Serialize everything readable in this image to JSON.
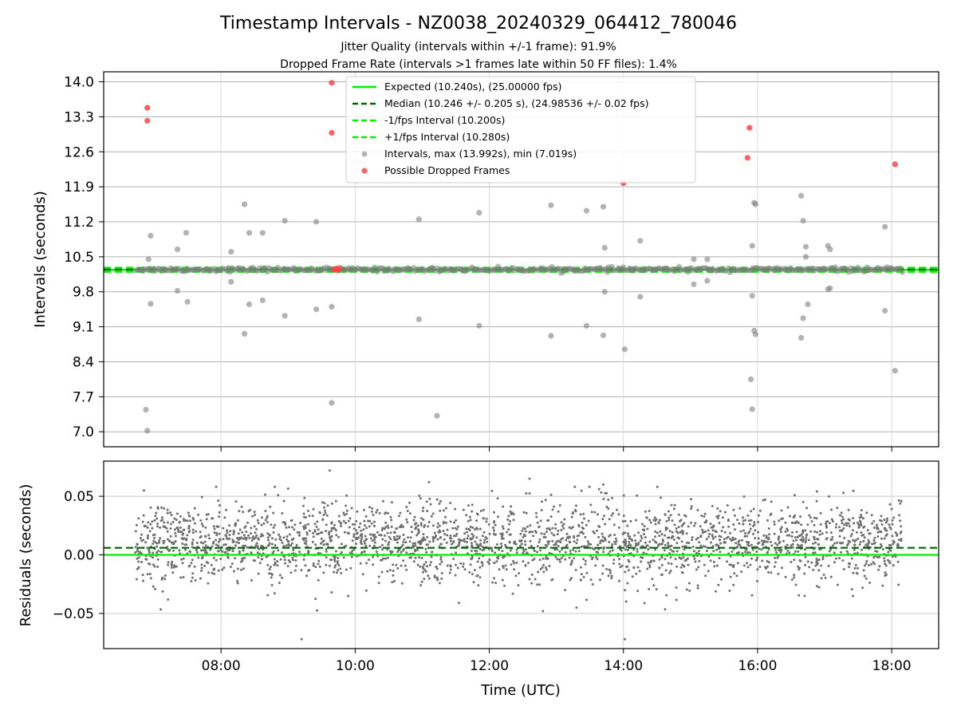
{
  "chart_data": [
    {
      "type": "scatter",
      "title": "Timestamp Intervals - NZ0038_20240329_064412_780046",
      "subtitle_lines": [
        "Jitter Quality (intervals within +/-1 frame): 91.9%",
        "Dropped Frame Rate (intervals >1 frames late within 50 FF files): 1.4%"
      ],
      "ylabel": "Intervals (seconds)",
      "xlabel": "",
      "xlim_hours": [
        6.25,
        18.7
      ],
      "ylim": [
        6.7,
        14.2
      ],
      "yticks": [
        7.0,
        7.7,
        8.4,
        9.1,
        9.8,
        10.5,
        11.2,
        11.9,
        12.6,
        13.3,
        14.0
      ],
      "ytick_labels": [
        "7.0",
        "7.7",
        "8.4",
        "9.1",
        "9.8",
        "10.5",
        "11.2",
        "11.9",
        "12.6",
        "13.3",
        "14.0"
      ],
      "grid": true,
      "legend_position": "top-center",
      "lines": [
        {
          "name": "Expected (10.240s), (25.00000 fps)",
          "y": 10.24,
          "style": "solid",
          "color": "#00ee00"
        },
        {
          "name": "Median (10.246 +/- 0.205 s), (24.98536 +/- 0.02 fps)",
          "y": 10.246,
          "style": "dashed",
          "color": "#006400"
        },
        {
          "name": "-1/fps Interval (10.200s)",
          "y": 10.2,
          "style": "dashed",
          "color": "#00ee00"
        },
        {
          "name": "+1/fps Interval (10.280s)",
          "y": 10.28,
          "style": "dashed",
          "color": "#00ee00"
        }
      ],
      "series": [
        {
          "name": "Intervals, max (13.992s), min (7.019s)",
          "color": "#808080",
          "band": {
            "x_start": 6.72,
            "x_end": 18.15,
            "center": 10.245,
            "spread": 0.02,
            "count": 420
          },
          "points": [
            [
              6.88,
              7.44
            ],
            [
              6.9,
              7.02
            ],
            [
              6.92,
              10.45
            ],
            [
              6.95,
              10.92
            ],
            [
              6.95,
              9.56
            ],
            [
              7.35,
              10.65
            ],
            [
              7.35,
              9.82
            ],
            [
              7.48,
              10.98
            ],
            [
              7.5,
              9.6
            ],
            [
              8.15,
              10.6
            ],
            [
              8.15,
              10.0
            ],
            [
              8.35,
              11.55
            ],
            [
              8.35,
              8.96
            ],
            [
              8.42,
              10.98
            ],
            [
              8.42,
              9.55
            ],
            [
              8.62,
              10.98
            ],
            [
              8.62,
              9.63
            ],
            [
              8.95,
              11.22
            ],
            [
              8.95,
              9.32
            ],
            [
              9.42,
              11.2
            ],
            [
              9.42,
              9.45
            ],
            [
              9.65,
              9.5
            ],
            [
              9.65,
              7.58
            ],
            [
              10.95,
              11.25
            ],
            [
              10.95,
              9.25
            ],
            [
              11.22,
              7.32
            ],
            [
              11.85,
              11.38
            ],
            [
              11.85,
              9.12
            ],
            [
              12.92,
              11.53
            ],
            [
              12.92,
              8.92
            ],
            [
              13.45,
              11.42
            ],
            [
              13.45,
              9.12
            ],
            [
              13.7,
              11.5
            ],
            [
              13.7,
              8.93
            ],
            [
              13.72,
              10.68
            ],
            [
              13.72,
              9.8
            ],
            [
              14.02,
              8.65
            ],
            [
              14.25,
              10.82
            ],
            [
              14.25,
              9.7
            ],
            [
              15.05,
              10.45
            ],
            [
              15.05,
              9.95
            ],
            [
              15.25,
              10.45
            ],
            [
              15.25,
              10.02
            ],
            [
              15.9,
              8.05
            ],
            [
              15.92,
              7.45
            ],
            [
              15.92,
              10.72
            ],
            [
              15.92,
              9.72
            ],
            [
              15.95,
              11.58
            ],
            [
              15.95,
              9.02
            ],
            [
              15.97,
              11.55
            ],
            [
              15.97,
              8.95
            ],
            [
              16.65,
              11.72
            ],
            [
              16.65,
              8.88
            ],
            [
              16.68,
              11.22
            ],
            [
              16.68,
              9.27
            ],
            [
              16.72,
              10.7
            ],
            [
              16.72,
              10.5
            ],
            [
              16.75,
              9.55
            ],
            [
              17.05,
              10.72
            ],
            [
              17.05,
              9.85
            ],
            [
              17.08,
              10.65
            ],
            [
              17.08,
              9.87
            ],
            [
              17.9,
              11.1
            ],
            [
              17.9,
              9.42
            ],
            [
              18.05,
              8.22
            ]
          ]
        },
        {
          "name": "Possible Dropped Frames",
          "color": "#ff4444",
          "points": [
            [
              6.9,
              13.48
            ],
            [
              6.9,
              13.22
            ],
            [
              9.65,
              13.98
            ],
            [
              9.65,
              12.98
            ],
            [
              14.0,
              11.97
            ],
            [
              15.85,
              12.48
            ],
            [
              15.88,
              13.08
            ],
            [
              18.05,
              12.35
            ],
            [
              9.68,
              10.25
            ],
            [
              9.7,
              10.24
            ],
            [
              9.72,
              10.26
            ],
            [
              9.74,
              10.24
            ],
            [
              9.76,
              10.25
            ]
          ]
        }
      ]
    },
    {
      "type": "scatter",
      "ylabel": "Residuals (seconds)",
      "xlabel": "Time (UTC)",
      "xlim_hours": [
        6.25,
        18.7
      ],
      "ylim": [
        -0.08,
        0.08
      ],
      "yticks": [
        -0.05,
        0.0,
        0.05
      ],
      "ytick_labels": [
        "−0.05",
        "0.00",
        "0.05"
      ],
      "xticks_hours": [
        8,
        10,
        12,
        14,
        16,
        18
      ],
      "xtick_labels": [
        "08:00",
        "10:00",
        "12:00",
        "14:00",
        "16:00",
        "18:00"
      ],
      "grid": true,
      "lines": [
        {
          "y": 0.0,
          "style": "solid",
          "color": "#00ee00"
        },
        {
          "y": 0.006,
          "style": "dashed",
          "color": "#006400"
        }
      ],
      "series": [
        {
          "color": "#707070",
          "band": {
            "x_start": 6.72,
            "x_end": 18.15,
            "center": 0.01,
            "spread": 0.017,
            "count": 2600
          },
          "points": [
            [
              9.62,
              0.072
            ],
            [
              9.2,
              -0.072
            ],
            [
              14.02,
              -0.072
            ],
            [
              11.1,
              0.062
            ],
            [
              12.6,
              0.065
            ],
            [
              12.8,
              -0.048
            ],
            [
              13.3,
              -0.045
            ],
            [
              13.7,
              0.06
            ],
            [
              6.85,
              0.055
            ]
          ]
        }
      ]
    }
  ]
}
